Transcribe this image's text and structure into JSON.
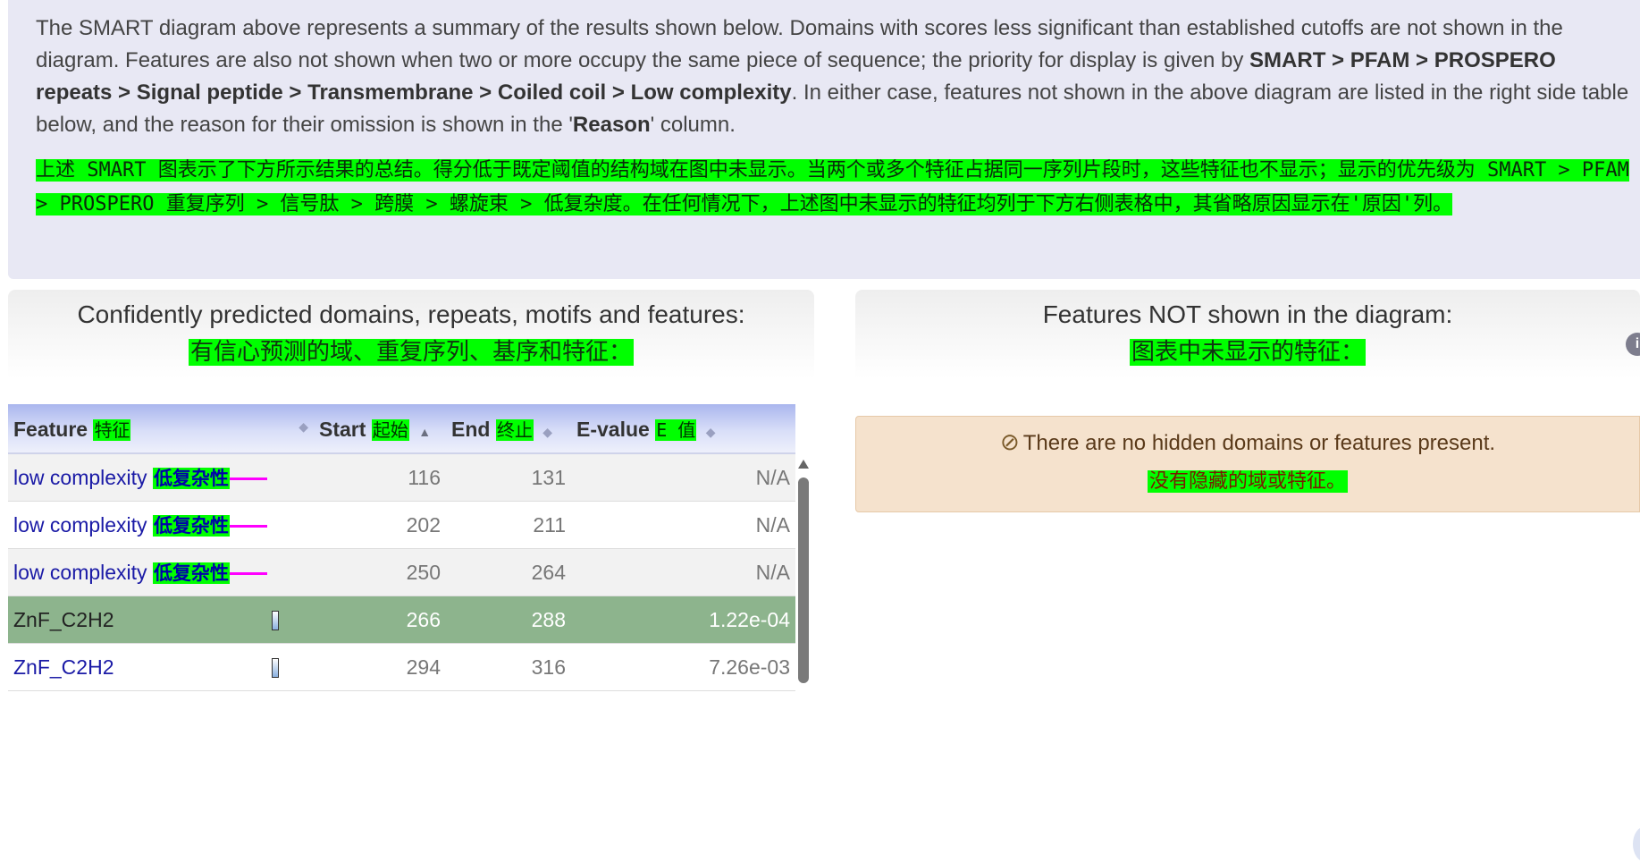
{
  "summary": {
    "text_before": "The SMART diagram above represents a summary of the results shown below. Domains with scores less significant than established cutoffs are not shown in the diagram. Features are also not shown when two or more occupy the same piece of sequence; the priority for display is given by ",
    "priority_bold": "SMART > PFAM > PROSPERO repeats > Signal peptide > Transmembrane > Coiled coil > Low complexity",
    "text_middle": ". In either case, features not shown in the above diagram are listed in the right side table below, and the reason for their omission is shown in the '",
    "reason_bold": "Reason",
    "text_end": "' column.",
    "translation": "上述 SMART 图表示了下方所示结果的总结。得分低于既定阈值的结构域在图中未显示。当两个或多个特征占据同一序列片段时，这些特征也不显示；显示的优先级为 SMART > PFAM > PROSPERO 重复序列 > 信号肽 > 跨膜 > 螺旋束 > 低复杂度。在任何情况下，上述图中未显示的特征均列于下方右侧表格中，其省略原因显示在'原因'列。"
  },
  "left_panel": {
    "title": "Confidently predicted domains, repeats, motifs and features:",
    "subtitle": "有信心预测的域、重复序列、基序和特征："
  },
  "table": {
    "columns": [
      {
        "label": "Feature",
        "cn": "特征"
      },
      {
        "label": "Start",
        "cn": "起始"
      },
      {
        "label": "End",
        "cn": "终止"
      },
      {
        "label": "E-value",
        "cn": "E 值"
      }
    ],
    "rows": [
      {
        "feature": "low complexity",
        "cn": "低复杂性",
        "start": "116",
        "end": "131",
        "evalue": "N/A"
      },
      {
        "feature": "low complexity",
        "cn": "低复杂性",
        "start": "202",
        "end": "211",
        "evalue": "N/A"
      },
      {
        "feature": "low complexity",
        "cn": "低复杂性",
        "start": "250",
        "end": "264",
        "evalue": "N/A"
      },
      {
        "feature": "ZnF_C2H2",
        "cn": "",
        "start": "266",
        "end": "288",
        "evalue": "1.22e-04"
      },
      {
        "feature": "ZnF_C2H2",
        "cn": "",
        "start": "294",
        "end": "316",
        "evalue": "7.26e-03"
      }
    ]
  },
  "right_panel": {
    "title": "Features NOT shown in the diagram:",
    "subtitle": "图表中未显示的特征：",
    "notice": "There are no hidden domains or features present.",
    "notice_cn": "没有隐藏的域或特征。"
  },
  "icons": {
    "ban": "ban-icon",
    "info": "info-icon",
    "sort": "sort-icon",
    "low_complexity_mark": "pink-line",
    "domain_mark": "domain-glyph"
  },
  "colors": {
    "translation_highlight": "#00ff00",
    "selected_row": "#8db48d",
    "low_complexity": "#ff00ff",
    "notice_bg": "#f5e2cd"
  }
}
